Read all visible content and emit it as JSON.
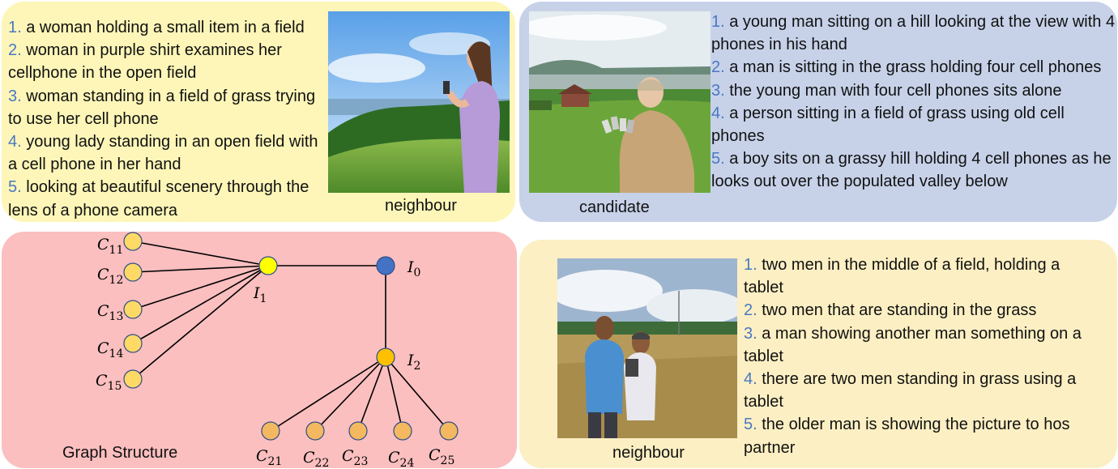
{
  "top_left": {
    "image_label": "neighbour",
    "captions": [
      {
        "num": "1.",
        "text": " a woman holding a small item in a field"
      },
      {
        "num": "2.",
        "text": " woman in purple shirt examines her cellphone in the open field"
      },
      {
        "num": "3.",
        "text": " woman standing in a field of grass trying to use her cell phone"
      },
      {
        "num": "4.",
        "text": " young lady standing in an open field with a cell phone in her hand"
      },
      {
        "num": "5.",
        "text": " looking at beautiful scenery through the lens of a phone camera"
      }
    ]
  },
  "top_right": {
    "image_label": "candidate",
    "captions": [
      {
        "num": "1.",
        "text": " a young man sitting on a hill looking at the view with 4 phones in his hand"
      },
      {
        "num": "2.",
        "text": " a man is sitting in the grass holding four cell phones"
      },
      {
        "num": "3.",
        "text": " the young man with four cell phones sits alone"
      },
      {
        "num": "4.",
        "text": " a person sitting in a field of grass using old cell phones"
      },
      {
        "num": "5.",
        "text": " a  boy sits on a grassy hill holding 4 cell phones as he looks out over the populated valley below"
      }
    ]
  },
  "bottom_right": {
    "image_label": "neighbour",
    "captions": [
      {
        "num": "1.",
        "text": " two men in the middle of a field, holding a tablet"
      },
      {
        "num": "2.",
        "text": " two men that are standing in the grass"
      },
      {
        "num": "3.",
        "text": " a man showing another man something on a tablet"
      },
      {
        "num": "4.",
        "text": " there are two men standing in grass using a tablet"
      },
      {
        "num": "5.",
        "text": " the older man is showing the picture to hos partner"
      }
    ]
  },
  "graph": {
    "title": "Graph Structure",
    "nodes": {
      "I0": {
        "label": "I",
        "sub": "0",
        "color": "#4472c4"
      },
      "I1": {
        "label": "I",
        "sub": "1",
        "color": "#ffff00"
      },
      "I2": {
        "label": "I",
        "sub": "2",
        "color": "#ffc000"
      },
      "C11": {
        "label": "C",
        "sub": "11"
      },
      "C12": {
        "label": "C",
        "sub": "12"
      },
      "C13": {
        "label": "C",
        "sub": "13"
      },
      "C14": {
        "label": "C",
        "sub": "14"
      },
      "C15": {
        "label": "C",
        "sub": "15"
      },
      "C21": {
        "label": "C",
        "sub": "21"
      },
      "C22": {
        "label": "C",
        "sub": "22"
      },
      "C23": {
        "label": "C",
        "sub": "23"
      },
      "C24": {
        "label": "C",
        "sub": "24"
      },
      "C25": {
        "label": "C",
        "sub": "25"
      }
    },
    "c1_color": "#ffd966",
    "c2_color": "#f4b860",
    "edges": [
      [
        "I1",
        "I0"
      ],
      [
        "I0",
        "I2"
      ],
      [
        "I1",
        "C11"
      ],
      [
        "I1",
        "C12"
      ],
      [
        "I1",
        "C13"
      ],
      [
        "I1",
        "C14"
      ],
      [
        "I1",
        "C15"
      ],
      [
        "I2",
        "C21"
      ],
      [
        "I2",
        "C22"
      ],
      [
        "I2",
        "C23"
      ],
      [
        "I2",
        "C24"
      ],
      [
        "I2",
        "C25"
      ]
    ]
  }
}
